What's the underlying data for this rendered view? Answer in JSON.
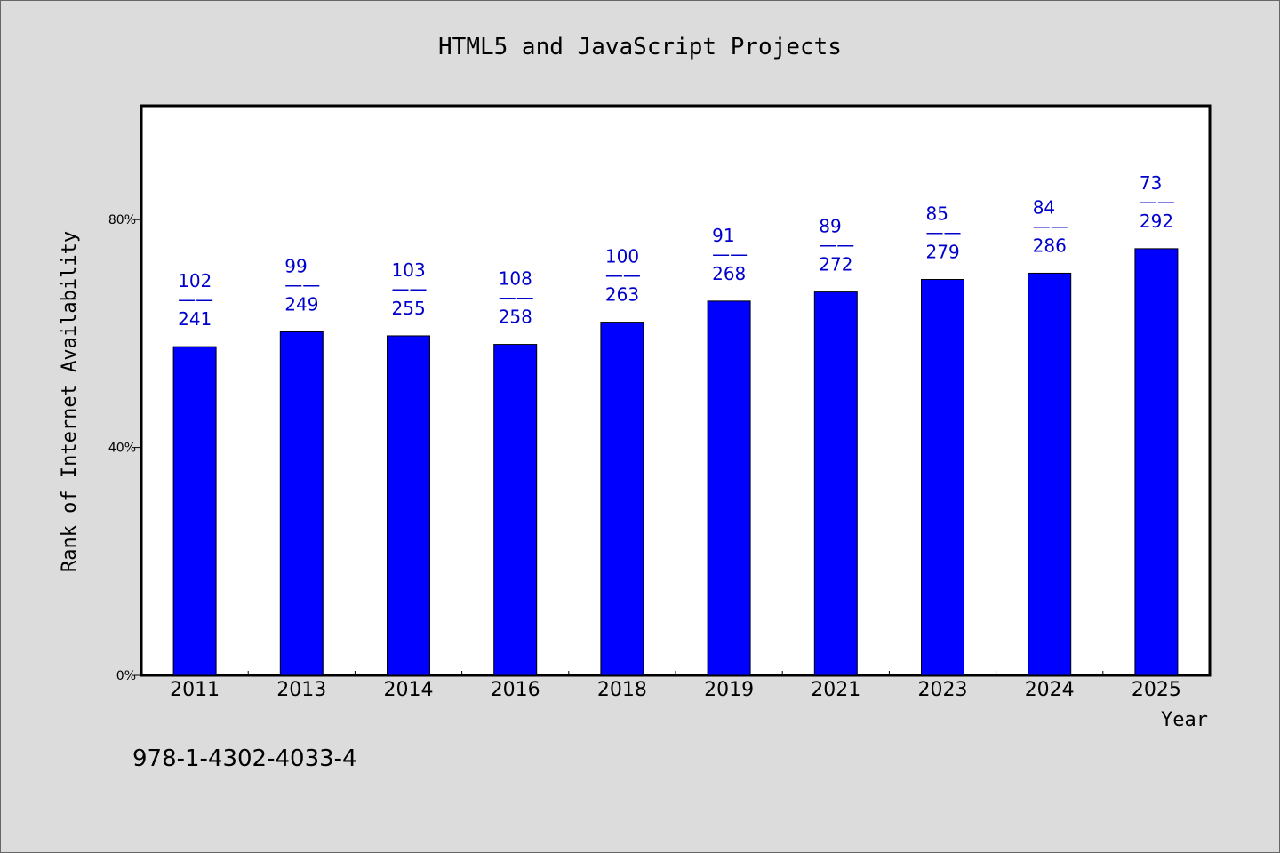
{
  "footer": {
    "isbn": "978-1-4302-4033-4"
  },
  "colors": {
    "background": "#dcdcdc",
    "plot_background": "#ffffff",
    "bar": "#0000ff",
    "data_label": "#0000cc"
  },
  "chart_data": {
    "type": "bar",
    "title": "HTML5 and JavaScript Projects",
    "xlabel": "Year",
    "ylabel": "Rank of Internet Availability",
    "ylim": [
      0,
      100
    ],
    "yticks": [
      {
        "value": 0,
        "label": "0%"
      },
      {
        "value": 40,
        "label": "40%"
      },
      {
        "value": 80,
        "label": "80%"
      }
    ],
    "grid": false,
    "categories": [
      "2011",
      "2013",
      "2014",
      "2016",
      "2018",
      "2019",
      "2021",
      "2023",
      "2024",
      "2025"
    ],
    "values": [
      57.7,
      60.3,
      59.6,
      58.1,
      62,
      65.7,
      67.3,
      69.5,
      70.6,
      74.9
    ],
    "data_labels": [
      {
        "top": "102",
        "sep": "——",
        "bottom": "241"
      },
      {
        "top": "99",
        "sep": "——",
        "bottom": "249"
      },
      {
        "top": "103",
        "sep": "——",
        "bottom": "255"
      },
      {
        "top": "108",
        "sep": "——",
        "bottom": "258"
      },
      {
        "top": "100",
        "sep": "——",
        "bottom": "263"
      },
      {
        "top": "91",
        "sep": "——",
        "bottom": "268"
      },
      {
        "top": "89",
        "sep": "——",
        "bottom": "272"
      },
      {
        "top": "85",
        "sep": "——",
        "bottom": "279"
      },
      {
        "top": "84",
        "sep": "——",
        "bottom": "286"
      },
      {
        "top": "73",
        "sep": "——",
        "bottom": "292"
      }
    ]
  }
}
